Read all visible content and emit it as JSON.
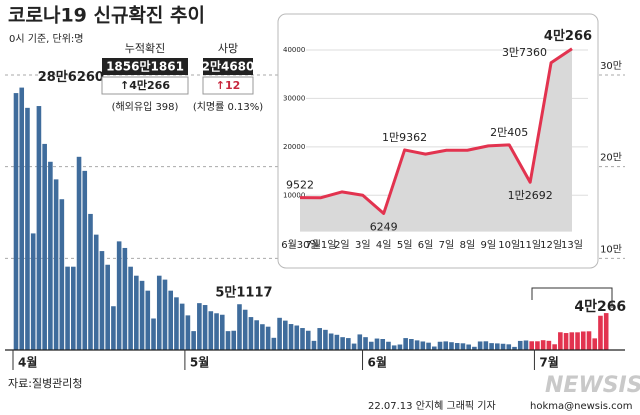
{
  "chart_data": [
    {
      "type": "bar",
      "title": "코로나19 신규확진 추이",
      "subtitle": "0시 기준, 단위:명",
      "categories": [
        "4월",
        null,
        null,
        null,
        null,
        null,
        null,
        null,
        null,
        null,
        null,
        null,
        null,
        null,
        null,
        null,
        null,
        null,
        null,
        null,
        null,
        null,
        null,
        null,
        null,
        null,
        null,
        null,
        null,
        null,
        "5월",
        null,
        null,
        null,
        null,
        null,
        null,
        null,
        null,
        null,
        null,
        null,
        null,
        null,
        null,
        null,
        null,
        null,
        null,
        null,
        null,
        null,
        null,
        null,
        null,
        null,
        null,
        null,
        null,
        null,
        null,
        "6월",
        null,
        null,
        null,
        null,
        null,
        null,
        null,
        null,
        null,
        null,
        null,
        null,
        null,
        null,
        null,
        null,
        null,
        null,
        null,
        null,
        null,
        null,
        null,
        null,
        null,
        null,
        null,
        null,
        null,
        "7월",
        null,
        null,
        null,
        null,
        null,
        null,
        null,
        null,
        null,
        null,
        null,
        null
      ],
      "series": [
        {
          "color": "#3f6c9c",
          "values": [
            280273,
            286260,
            264171,
            127190,
            266135,
            224820,
            205333,
            186138,
            164480,
            90928,
            90867,
            210755,
            195419,
            148443,
            125846,
            107916,
            93001,
            47743,
            118504,
            111319,
            90867,
            81058,
            75449,
            64725,
            34370,
            81058,
            76787,
            64725,
            57464,
            50568,
            37771,
            20601,
            51117,
            49064,
            42296,
            40064,
            38463,
            20576,
            21000,
            49933,
            43925,
            35906,
            32451,
            28130,
            25434,
            13296,
            35117,
            32057,
            28315,
            26714,
            23956,
            21000,
            9975,
            23945,
            22000,
            18000,
            16584,
            14000,
            13000,
            7000,
            17000,
            14000,
            9000,
            12500,
            12000,
            9000,
            5000,
            6000,
            13000,
            12000,
            10500,
            9300,
            8000,
            3800,
            9000,
            9400,
            8500,
            7600,
            7300,
            6000,
            3500,
            9300,
            9500,
            7500,
            7200,
            6800,
            6200,
            3400,
            9900,
            10400,
            null,
            null,
            null,
            null,
            null,
            null,
            null,
            null,
            null,
            null,
            null,
            null,
            null,
            null
          ],
          "value_labels": [
            null,
            "28만6260",
            null,
            null,
            null,
            null,
            null,
            null,
            null,
            null,
            null,
            null,
            null,
            null,
            null,
            null,
            null,
            null,
            null,
            null,
            null,
            null,
            null,
            null,
            null,
            null,
            null,
            null,
            null,
            null,
            null,
            null,
            "5만1117",
            null,
            null,
            null,
            null,
            null,
            null,
            null,
            null,
            null,
            null,
            null,
            null,
            null,
            null,
            null,
            null,
            null,
            null,
            null,
            null,
            null,
            null,
            null,
            null,
            null,
            null,
            null,
            null,
            null,
            null,
            null,
            null,
            null,
            null,
            null,
            null,
            null,
            null,
            null,
            null,
            null,
            null,
            null,
            null,
            null,
            null,
            null,
            null,
            null,
            null,
            null,
            null,
            null,
            null,
            null,
            null,
            null,
            null,
            null,
            null,
            null,
            null,
            null,
            null,
            null,
            null,
            null,
            null,
            null,
            null,
            null
          ]
        },
        {
          "color": "#e2334f",
          "values": [
            null,
            null,
            null,
            null,
            null,
            null,
            null,
            null,
            null,
            null,
            null,
            null,
            null,
            null,
            null,
            null,
            null,
            null,
            null,
            null,
            null,
            null,
            null,
            null,
            null,
            null,
            null,
            null,
            null,
            null,
            null,
            null,
            null,
            null,
            null,
            null,
            null,
            null,
            null,
            null,
            null,
            null,
            null,
            null,
            null,
            null,
            null,
            null,
            null,
            null,
            null,
            null,
            null,
            null,
            null,
            null,
            null,
            null,
            null,
            null,
            null,
            null,
            null,
            null,
            null,
            null,
            null,
            null,
            null,
            null,
            null,
            null,
            null,
            null,
            null,
            null,
            null,
            null,
            null,
            null,
            null,
            null,
            null,
            null,
            null,
            null,
            null,
            null,
            null,
            null,
            9522,
            9500,
            10700,
            10000,
            6249,
            19362,
            18500,
            19300,
            19300,
            20200,
            20405,
            12692,
            37360,
            40266
          ],
          "value_labels": [
            null,
            null,
            null,
            null,
            null,
            null,
            null,
            null,
            null,
            null,
            null,
            null,
            null,
            null,
            null,
            null,
            null,
            null,
            null,
            null,
            null,
            null,
            null,
            null,
            null,
            null,
            null,
            null,
            null,
            null,
            null,
            null,
            null,
            null,
            null,
            null,
            null,
            null,
            null,
            null,
            null,
            null,
            null,
            null,
            null,
            null,
            null,
            null,
            null,
            null,
            null,
            null,
            null,
            null,
            null,
            null,
            null,
            null,
            null,
            null,
            null,
            null,
            null,
            null,
            null,
            null,
            null,
            null,
            null,
            null,
            null,
            null,
            null,
            null,
            null,
            null,
            null,
            null,
            null,
            null,
            null,
            null,
            null,
            null,
            null,
            null,
            null,
            null,
            null,
            null,
            null,
            null,
            null,
            null,
            null,
            null,
            null,
            null,
            null,
            null,
            null,
            null,
            null,
            "4만266"
          ]
        }
      ],
      "ylim": [
        0,
        300000
      ],
      "yticks": [
        {
          "value": 100000,
          "label": "10만"
        },
        {
          "value": 200000,
          "label": "20만"
        },
        {
          "value": 300000,
          "label": "30만"
        }
      ],
      "grid": true
    },
    {
      "type": "line",
      "color": "#e2334f",
      "categories": [
        "6월30일",
        "7월1일",
        "2일",
        "3일",
        "4일",
        "5일",
        "6일",
        "7일",
        "8일",
        "9일",
        "10일",
        "11일",
        "12일",
        "13일"
      ],
      "values": [
        9522,
        9500,
        10700,
        10000,
        6249,
        19362,
        18500,
        19300,
        19300,
        20200,
        20405,
        12692,
        37360,
        40266
      ],
      "value_labels": [
        "9522",
        null,
        null,
        null,
        "6249",
        "1만9362",
        null,
        null,
        null,
        null,
        "2만405",
        "1만2692",
        "3만7360",
        "4만266"
      ],
      "ylim": [
        2500,
        42000
      ],
      "yticks": [
        10000,
        20000,
        30000,
        40000
      ],
      "grid": true
    }
  ],
  "summary": {
    "cumulative": {
      "label": "누적확진",
      "total": "1856만1861",
      "change": "↑4만266",
      "note": "(해외유입 398)"
    },
    "deaths": {
      "label": "사망",
      "total": "2만4680",
      "change": "↑12",
      "note": "(치명률 0.13%)"
    }
  },
  "footer": {
    "source": "자료:질병관리청",
    "credit": "22.07.13 안지혜 그래픽 기자",
    "email": "hokma@newsis.com",
    "logo": "NEWSIS"
  }
}
